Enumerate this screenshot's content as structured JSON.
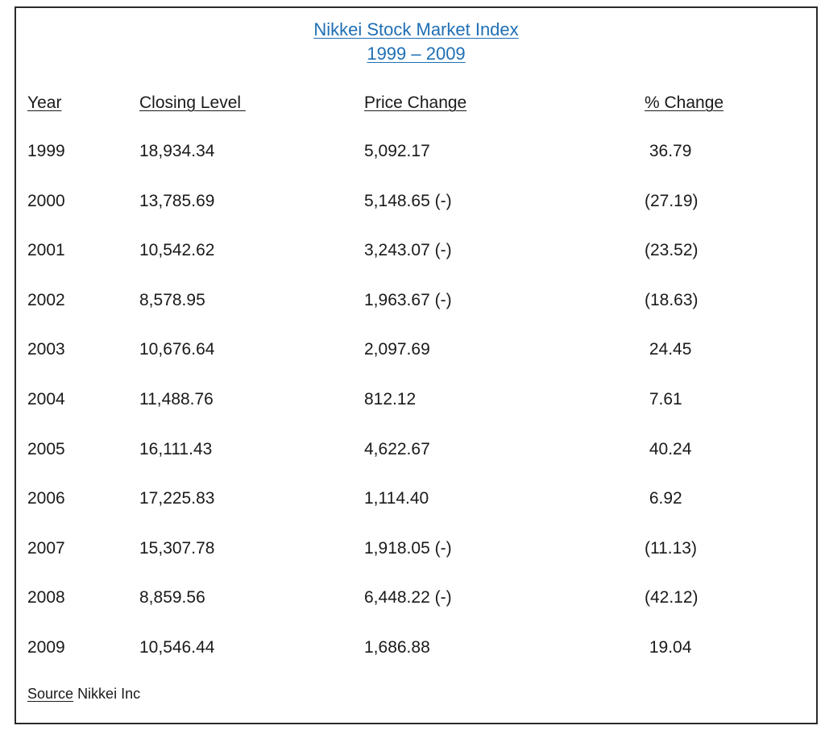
{
  "title": {
    "line1": "Nikkei Stock Market Index",
    "line2": "1999 – 2009"
  },
  "columns": {
    "year": "Year",
    "closing_level": "Closing Level ",
    "price_change": "Price Change",
    "pct_change": "% Change"
  },
  "rows": [
    {
      "year": "1999",
      "closing_level": "18,934.34",
      "price_change": "5,092.17",
      "pct_change": " 36.79"
    },
    {
      "year": "2000",
      "closing_level": "13,785.69",
      "price_change": "5,148.65 (-)",
      "pct_change": "(27.19)"
    },
    {
      "year": "2001",
      "closing_level": "10,542.62",
      "price_change": "3,243.07 (-)",
      "pct_change": "(23.52)"
    },
    {
      "year": "2002",
      "closing_level": "8,578.95",
      "price_change": "1,963.67 (-)",
      "pct_change": "(18.63)"
    },
    {
      "year": "2003",
      "closing_level": "10,676.64",
      "price_change": "2,097.69",
      "pct_change": " 24.45"
    },
    {
      "year": "2004",
      "closing_level": "11,488.76",
      "price_change": "812.12",
      "pct_change": " 7.61"
    },
    {
      "year": "2005",
      "closing_level": "16,111.43",
      "price_change": "4,622.67",
      "pct_change": " 40.24"
    },
    {
      "year": "2006",
      "closing_level": "17,225.83",
      "price_change": "1,114.40",
      "pct_change": " 6.92"
    },
    {
      "year": "2007",
      "closing_level": "15,307.78",
      "price_change": "1,918.05 (-)",
      "pct_change": "(11.13)"
    },
    {
      "year": "2008",
      "closing_level": "8,859.56",
      "price_change": "6,448.22 (-)",
      "pct_change": "(42.12)"
    },
    {
      "year": "2009",
      "closing_level": "10,546.44",
      "price_change": "1,686.88",
      "pct_change": " 19.04"
    }
  ],
  "source": {
    "label": "Source",
    "value": "Nikkei Inc"
  },
  "colors": {
    "title": "#1f6fb5",
    "text": "#1a1a1a",
    "border": "#2b2b2b"
  }
}
